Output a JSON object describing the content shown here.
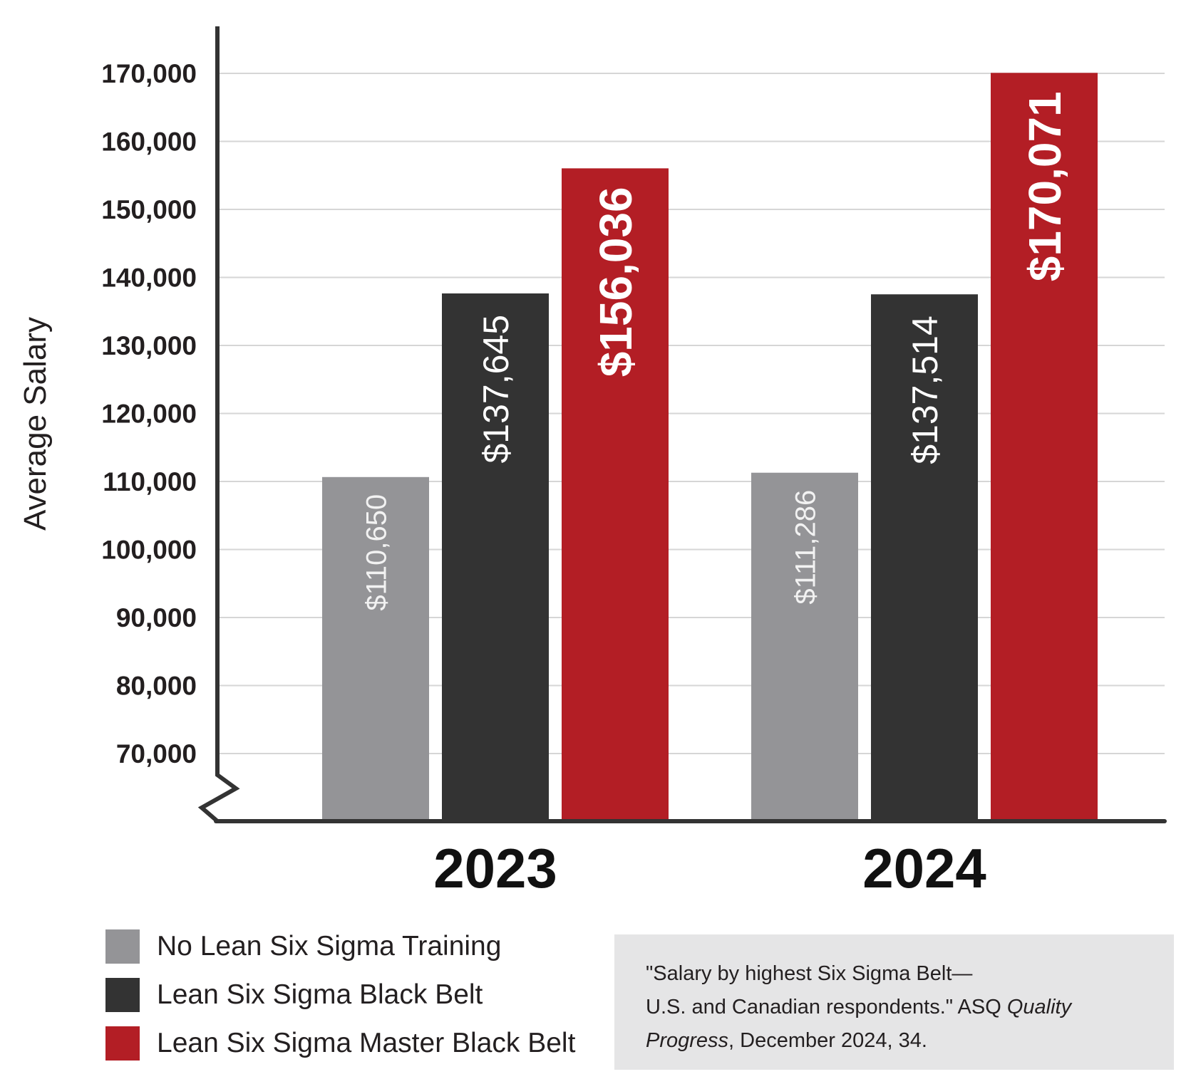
{
  "chart_data": {
    "type": "bar",
    "categories": [
      "2023",
      "2024"
    ],
    "series": [
      {
        "name": "No Lean Six Sigma Training",
        "color": "#949497",
        "values": [
          110650,
          111286
        ],
        "labels": [
          "$110,650",
          "$111,286"
        ]
      },
      {
        "name": "Lean Six Sigma Black Belt",
        "color": "#333333",
        "values": [
          137645,
          137514
        ],
        "labels": [
          "$137,645",
          "$137,514"
        ]
      },
      {
        "name": "Lean Six Sigma Master Black Belt",
        "color": "#b31e25",
        "values": [
          156036,
          170071
        ],
        "labels": [
          "$156,036",
          "$170,071"
        ]
      }
    ],
    "ylabel": "Average Salary",
    "xlabel": "",
    "yticks": [
      70000,
      80000,
      90000,
      100000,
      110000,
      120000,
      130000,
      140000,
      150000,
      160000,
      170000
    ],
    "ytick_labels": [
      "70,000",
      "80,000",
      "90,000",
      "100,000",
      "110,000",
      "120,000",
      "130,000",
      "140,000",
      "150,000",
      "160,000",
      "170,000"
    ],
    "ylim": [
      60000,
      172000
    ],
    "axis_break": true,
    "grid": true,
    "legend_position": "bottom-left"
  },
  "source": {
    "line1": "\"Salary by highest Six Sigma Belt—",
    "line2_a": "U.S. and Canadian respondents.\" ASQ ",
    "line2_b": "Quality",
    "line3_a": "Progress",
    "line3_b": ", December 2024, 34."
  }
}
